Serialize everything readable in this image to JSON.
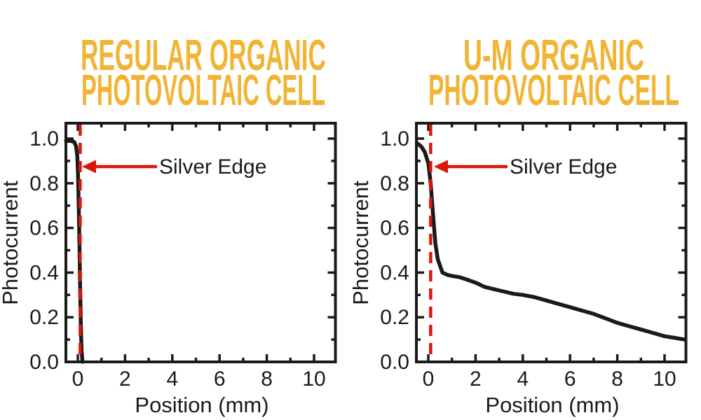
{
  "colors": {
    "title_gold": "#F1B434",
    "accent_red": "#DB1607",
    "ink_black": "#1A1A1A",
    "background": "#FFFFFF"
  },
  "chart_data": [
    {
      "type": "line",
      "title": "REGULAR ORGANIC PHOTOVOLTAIC CELL",
      "title_lines": [
        "REGULAR ORGANIC",
        "PHOTOVOLTAIC CELL"
      ],
      "xlabel": "Position (mm)",
      "ylabel": "Photocurrent",
      "xlim": [
        -0.52,
        10.9
      ],
      "ylim": [
        0,
        1.07
      ],
      "xticks": [
        0,
        2,
        4,
        6,
        8,
        10
      ],
      "xticks_minor": [
        1,
        3,
        5,
        7,
        9
      ],
      "yticks": [
        0.0,
        0.2,
        0.4,
        0.6,
        0.8,
        1.0
      ],
      "yticks_minor": [
        0.1,
        0.3,
        0.5,
        0.7,
        0.9
      ],
      "ytick_labels": [
        "0.0",
        "0.2",
        "0.4",
        "0.6",
        "0.8",
        "1.0"
      ],
      "grid": false,
      "legend": "none",
      "silver_edge_x": 0.1,
      "annotation": {
        "label": "Silver Edge",
        "arrow_y": 0.875
      },
      "series": [
        {
          "name": "photocurrent",
          "x": [
            -0.5,
            -0.3,
            -0.15,
            -0.07,
            -0.02,
            0.01,
            0.04,
            0.07,
            0.1,
            0.13,
            0.16,
            0.2
          ],
          "y": [
            0.99,
            0.99,
            0.985,
            0.965,
            0.92,
            0.84,
            0.7,
            0.52,
            0.32,
            0.15,
            0.05,
            0.0
          ]
        }
      ]
    },
    {
      "type": "line",
      "title": "U-M ORGANIC PHOTOVOLTAIC CELL",
      "title_lines": [
        "U-M ORGANIC",
        "PHOTOVOLTAIC CELL"
      ],
      "xlabel": "Position (mm)",
      "ylabel": "Photocurrent",
      "xlim": [
        -0.48,
        10.9
      ],
      "ylim": [
        0,
        1.07
      ],
      "xticks": [
        0,
        2,
        4,
        6,
        8,
        10
      ],
      "xticks_minor": [
        1,
        3,
        5,
        7,
        9
      ],
      "yticks": [
        0.0,
        0.2,
        0.4,
        0.6,
        0.8,
        1.0
      ],
      "yticks_minor": [
        0.1,
        0.3,
        0.5,
        0.7,
        0.9
      ],
      "ytick_labels": [
        "0.0",
        "0.2",
        "0.4",
        "0.6",
        "0.8",
        "1.0"
      ],
      "grid": false,
      "legend": "none",
      "silver_edge_x": 0.1,
      "annotation": {
        "label": "Silver Edge",
        "arrow_y": 0.875
      },
      "series": [
        {
          "name": "photocurrent",
          "x": [
            -0.48,
            -0.3,
            -0.15,
            0.0,
            0.1,
            0.2,
            0.3,
            0.4,
            0.5,
            0.6,
            0.8,
            1.0,
            1.3,
            1.6,
            2.0,
            2.4,
            2.8,
            3.2,
            3.6,
            4.0,
            4.5,
            5.0,
            5.5,
            6.0,
            6.5,
            7.0,
            7.5,
            8.0,
            8.5,
            9.0,
            9.5,
            10.0,
            10.4,
            10.85
          ],
          "y": [
            0.98,
            0.965,
            0.94,
            0.89,
            0.8,
            0.66,
            0.53,
            0.46,
            0.43,
            0.4,
            0.39,
            0.385,
            0.38,
            0.37,
            0.355,
            0.335,
            0.325,
            0.315,
            0.305,
            0.3,
            0.29,
            0.275,
            0.26,
            0.245,
            0.23,
            0.215,
            0.195,
            0.175,
            0.16,
            0.145,
            0.13,
            0.115,
            0.108,
            0.1
          ]
        }
      ]
    }
  ]
}
